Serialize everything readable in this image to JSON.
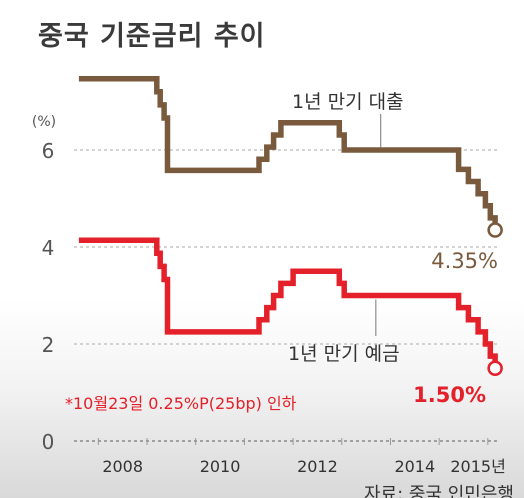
{
  "title": "중국 기준금리 추이",
  "source": "자료: 중국 인민은행",
  "footnote": "*10월23일 0.25%P(25bp) 인하",
  "colors": {
    "loan": "#7a5a3c",
    "deposit": "#e4202a",
    "axis": "#555555",
    "grid": "#bbbbbb",
    "title": "#3a3a3a"
  },
  "chart_data": {
    "type": "line",
    "xlabel": "",
    "ylabel": "(%)",
    "xlim": [
      2007.0,
      2015.75
    ],
    "ylim": [
      0,
      8
    ],
    "y_ticks": [
      "0",
      "2",
      "4",
      "6"
    ],
    "y_tick_values": [
      0,
      2,
      4,
      6
    ],
    "x_tick_labels": [
      "2008",
      "2010",
      "2012",
      "2014",
      "2015년"
    ],
    "x_tick_values": [
      2008,
      2010,
      2012,
      2014,
      2015.3
    ],
    "grid": true,
    "series": [
      {
        "name": "1년 만기 대출",
        "color": "#7a5a3c",
        "end_label": "4.35%",
        "points": [
          [
            2007.1,
            7.47
          ],
          [
            2008.7,
            7.47
          ],
          [
            2008.7,
            7.2
          ],
          [
            2008.77,
            7.2
          ],
          [
            2008.77,
            6.93
          ],
          [
            2008.85,
            6.93
          ],
          [
            2008.85,
            6.66
          ],
          [
            2008.92,
            6.66
          ],
          [
            2008.92,
            5.58
          ],
          [
            2010.8,
            5.58
          ],
          [
            2010.8,
            5.81
          ],
          [
            2010.96,
            5.81
          ],
          [
            2010.96,
            6.06
          ],
          [
            2011.1,
            6.06
          ],
          [
            2011.1,
            6.31
          ],
          [
            2011.25,
            6.31
          ],
          [
            2011.25,
            6.56
          ],
          [
            2012.45,
            6.56
          ],
          [
            2012.45,
            6.31
          ],
          [
            2012.55,
            6.31
          ],
          [
            2012.55,
            6.0
          ],
          [
            2014.9,
            6.0
          ],
          [
            2014.9,
            5.6
          ],
          [
            2015.1,
            5.6
          ],
          [
            2015.1,
            5.35
          ],
          [
            2015.3,
            5.35
          ],
          [
            2015.3,
            5.1
          ],
          [
            2015.45,
            5.1
          ],
          [
            2015.45,
            4.85
          ],
          [
            2015.55,
            4.85
          ],
          [
            2015.55,
            4.6
          ],
          [
            2015.65,
            4.6
          ],
          [
            2015.65,
            4.35
          ]
        ]
      },
      {
        "name": "1년 만기 예금",
        "color": "#e4202a",
        "end_label": "1.50%",
        "points": [
          [
            2007.1,
            4.14
          ],
          [
            2008.7,
            4.14
          ],
          [
            2008.7,
            3.87
          ],
          [
            2008.77,
            3.87
          ],
          [
            2008.77,
            3.6
          ],
          [
            2008.85,
            3.6
          ],
          [
            2008.85,
            3.33
          ],
          [
            2008.92,
            3.33
          ],
          [
            2008.92,
            2.25
          ],
          [
            2010.8,
            2.25
          ],
          [
            2010.8,
            2.5
          ],
          [
            2010.96,
            2.5
          ],
          [
            2010.96,
            2.75
          ],
          [
            2011.1,
            2.75
          ],
          [
            2011.1,
            3.0
          ],
          [
            2011.25,
            3.0
          ],
          [
            2011.25,
            3.25
          ],
          [
            2011.5,
            3.25
          ],
          [
            2011.5,
            3.5
          ],
          [
            2012.45,
            3.5
          ],
          [
            2012.45,
            3.25
          ],
          [
            2012.55,
            3.25
          ],
          [
            2012.55,
            3.0
          ],
          [
            2014.9,
            3.0
          ],
          [
            2014.9,
            2.75
          ],
          [
            2015.1,
            2.75
          ],
          [
            2015.1,
            2.5
          ],
          [
            2015.3,
            2.5
          ],
          [
            2015.3,
            2.25
          ],
          [
            2015.45,
            2.25
          ],
          [
            2015.45,
            2.0
          ],
          [
            2015.55,
            2.0
          ],
          [
            2015.55,
            1.75
          ],
          [
            2015.65,
            1.75
          ],
          [
            2015.65,
            1.5
          ]
        ]
      }
    ]
  }
}
